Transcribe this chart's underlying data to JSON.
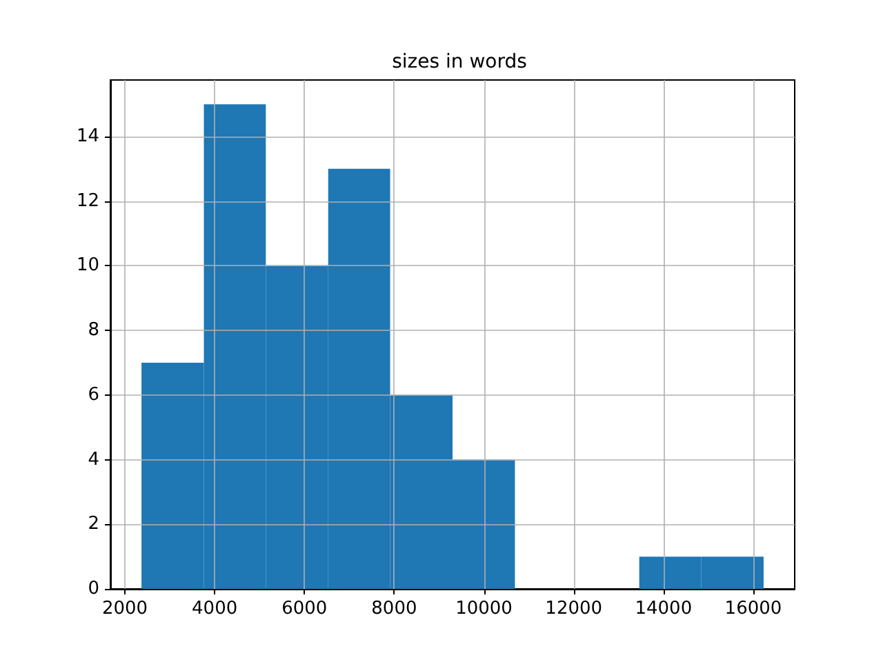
{
  "chart_data": {
    "type": "histogram",
    "title": "sizes in words",
    "bins": [
      2370,
      3760,
      5140,
      6530,
      7910,
      9300,
      10690,
      13460,
      14840,
      16230
    ],
    "values": [
      7,
      15,
      10,
      13,
      6,
      4,
      0,
      1,
      1
    ],
    "color": "#1f77b4",
    "xlim": [
      1677,
      16923
    ],
    "xticks": [
      2000,
      4000,
      6000,
      8000,
      10000,
      12000,
      14000,
      16000
    ],
    "ylim": [
      0,
      15.75
    ],
    "yticks": [
      0,
      2,
      4,
      6,
      8,
      10,
      12,
      14
    ],
    "grid": true
  }
}
